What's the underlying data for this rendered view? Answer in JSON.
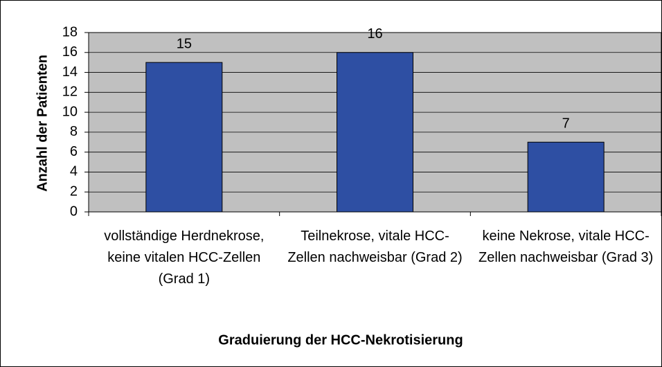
{
  "chart_data": {
    "type": "bar",
    "categories": [
      "vollständige Herdnekrose, keine vitalen HCC-Zellen (Grad 1)",
      "Teilnekrose, vitale HCC-Zellen nachweisbar (Grad 2)",
      "keine Nekrose, vitale HCC-Zellen nachweisbar (Grad 3)"
    ],
    "values": [
      15,
      16,
      7
    ],
    "color": "#2e4fa3",
    "plot_background": "#c0c0c0",
    "ylim": [
      0,
      18
    ],
    "yticks": [
      0,
      2,
      4,
      6,
      8,
      10,
      12,
      14,
      16,
      18
    ],
    "grid": true,
    "x_label": "Graduierung der HCC-Nekrotisierung",
    "y_label": "Anzahl der Patienten"
  }
}
